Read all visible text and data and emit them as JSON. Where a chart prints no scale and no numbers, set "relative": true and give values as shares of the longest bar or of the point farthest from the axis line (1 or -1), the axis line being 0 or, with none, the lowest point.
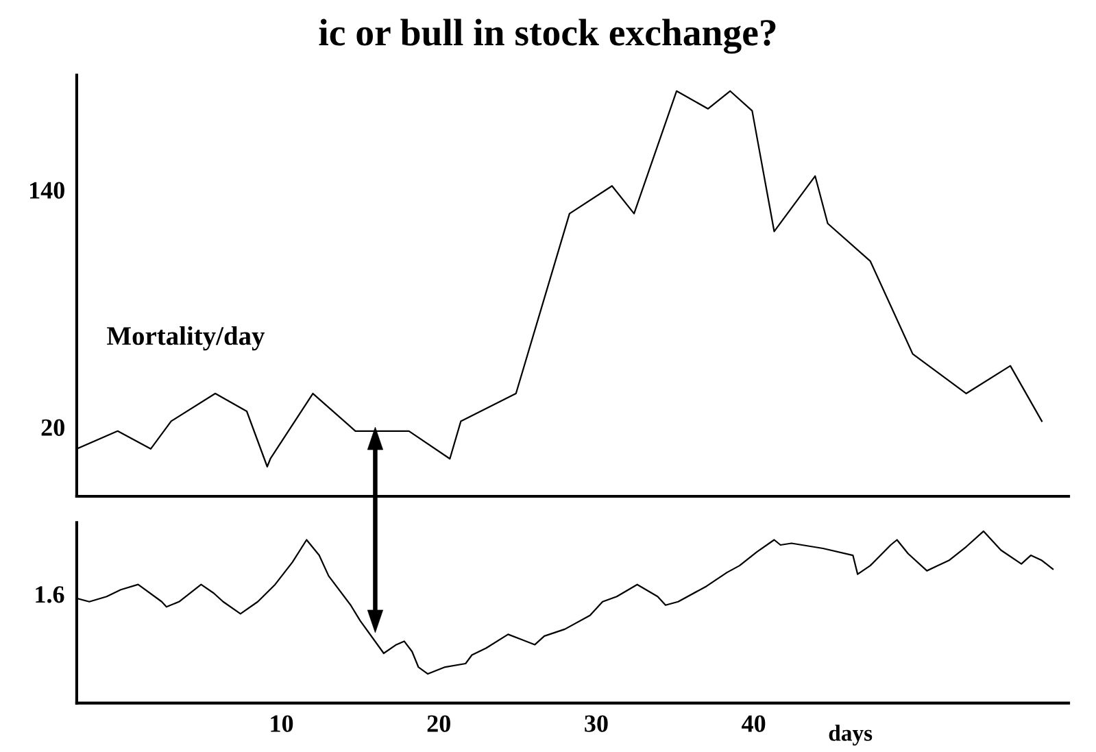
{
  "chart_data": [
    {
      "type": "line",
      "title": "ic or bull in stock exchange?",
      "color": "#000000",
      "xlim": [
        -3,
        60
      ],
      "ylim": [
        -15,
        198
      ],
      "yticks": [
        20,
        140
      ],
      "tick_labels": "y",
      "annotations": [
        "Mortality/day"
      ],
      "x": [
        -3.0,
        -0.4,
        1.7,
        3.0,
        5.8,
        7.8,
        9.1,
        9.3,
        12.0,
        14.7,
        18.1,
        20.7,
        21.4,
        24.9,
        28.3,
        31.0,
        32.4,
        35.1,
        37.1,
        38.5,
        39.9,
        41.3,
        43.9,
        44.7,
        47.4,
        50.1,
        53.5,
        56.3,
        58.3
      ],
      "values": [
        9,
        18,
        9,
        23,
        37,
        28,
        0,
        4,
        37,
        18,
        18,
        4,
        23,
        37,
        128,
        142,
        128,
        190,
        181,
        190,
        180,
        119,
        147,
        123,
        104,
        57,
        37,
        51,
        23
      ]
    },
    {
      "type": "line",
      "relative": true,
      "color": "#000000",
      "xlim": [
        -3,
        60
      ],
      "xticks": [
        10,
        20,
        30,
        40
      ],
      "annotations": [
        "1.6"
      ],
      "xlabel": "days",
      "x": [
        -3.0,
        -2.2,
        -1.1,
        -0.2,
        0.9,
        2.4,
        2.7,
        3.5,
        4.9,
        5.7,
        6.3,
        7.4,
        8.5,
        9.6,
        10.7,
        11.6,
        12.4,
        13.0,
        14.4,
        15.0,
        16.5,
        17.3,
        17.8,
        18.3,
        18.7,
        19.3,
        20.4,
        21.7,
        22.1,
        23.0,
        24.4,
        26.1,
        26.7,
        28.0,
        29.6,
        30.4,
        31.3,
        32.6,
        33.9,
        34.4,
        35.2,
        37.0,
        38.3,
        39.1,
        40.2,
        41.3,
        41.7,
        42.4,
        44.4,
        46.3,
        46.6,
        47.4,
        48.7,
        49.1,
        49.8,
        51.0,
        51.7,
        52.4,
        53.5,
        54.6,
        55.7,
        57.0,
        57.6,
        58.3,
        59.0
      ],
      "values": [
        0.61,
        0.59,
        0.62,
        0.66,
        0.69,
        0.59,
        0.56,
        0.59,
        0.69,
        0.64,
        0.59,
        0.52,
        0.59,
        0.69,
        0.82,
        0.95,
        0.86,
        0.74,
        0.57,
        0.48,
        0.29,
        0.34,
        0.36,
        0.3,
        0.21,
        0.17,
        0.21,
        0.23,
        0.28,
        0.32,
        0.4,
        0.34,
        0.39,
        0.43,
        0.51,
        0.59,
        0.62,
        0.69,
        0.62,
        0.57,
        0.59,
        0.68,
        0.76,
        0.8,
        0.88,
        0.95,
        0.92,
        0.93,
        0.9,
        0.86,
        0.75,
        0.8,
        0.92,
        0.95,
        0.87,
        0.77,
        0.8,
        0.83,
        0.91,
        1.0,
        0.89,
        0.81,
        0.86,
        0.83,
        0.78
      ]
    }
  ]
}
